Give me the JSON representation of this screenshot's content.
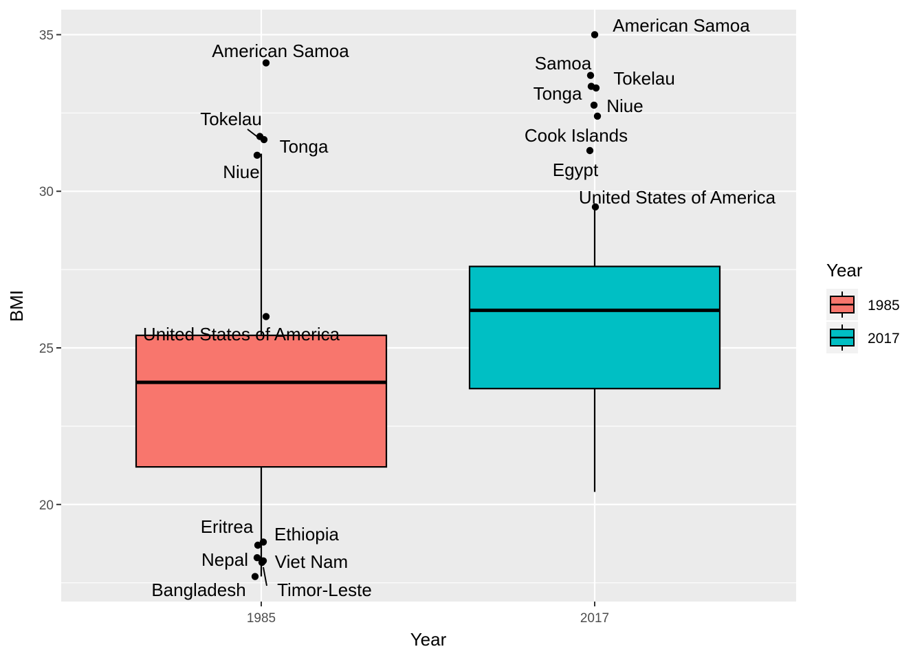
{
  "chart_data": {
    "type": "box",
    "title": "",
    "xlabel": "Year",
    "ylabel": "BMI",
    "categories": [
      "1985",
      "2017"
    ],
    "ylim": [
      16.9,
      35.8
    ],
    "y_ticks": [
      20,
      25,
      30,
      35
    ],
    "grid": true,
    "legend": {
      "title": "Year",
      "position": "right",
      "entries": [
        {
          "label": "1985",
          "color": "#F8766D"
        },
        {
          "label": "2017",
          "color": "#00BFC4"
        }
      ]
    },
    "boxes": [
      {
        "category": "1985",
        "lower_whisker": 17.7,
        "q1": 21.2,
        "median": 23.9,
        "q3": 25.4,
        "upper_whisker": 31.2,
        "fill": "#F8766D"
      },
      {
        "category": "2017",
        "lower_whisker": 20.4,
        "q1": 23.7,
        "median": 26.2,
        "q3": 27.6,
        "upper_whisker": 29.5,
        "fill": "#00BFC4"
      }
    ],
    "points": [
      {
        "category": "1985",
        "label": "American Samoa",
        "y": 34.1
      },
      {
        "category": "1985",
        "label": "Tokelau",
        "y": 31.75
      },
      {
        "category": "1985",
        "label": "Tonga",
        "y": 31.65
      },
      {
        "category": "1985",
        "label": "Niue",
        "y": 31.15
      },
      {
        "category": "1985",
        "label": "United States of America",
        "y": 26.0
      },
      {
        "category": "1985",
        "label": "Eritrea",
        "y": 18.7
      },
      {
        "category": "1985",
        "label": "Ethiopia",
        "y": 18.8
      },
      {
        "category": "1985",
        "label": "Nepal",
        "y": 18.3
      },
      {
        "category": "1985",
        "label": "Viet Nam",
        "y": 18.2
      },
      {
        "category": "1985",
        "label": "Bangladesh",
        "y": 17.7
      },
      {
        "category": "1985",
        "label": "Timor-Leste",
        "y": 18.15
      },
      {
        "category": "2017",
        "label": "American Samoa",
        "y": 35.0
      },
      {
        "category": "2017",
        "label": "Samoa",
        "y": 33.7
      },
      {
        "category": "2017",
        "label": "Tokelau",
        "y": 33.3
      },
      {
        "category": "2017",
        "label": "Tonga",
        "y": 33.35
      },
      {
        "category": "2017",
        "label": "Niue",
        "y": 32.75
      },
      {
        "category": "2017",
        "label": "Cook Islands",
        "y": 32.4
      },
      {
        "category": "2017",
        "label": "Egypt",
        "y": 31.3
      },
      {
        "category": "2017",
        "label": "United States of America",
        "y": 29.5
      }
    ]
  }
}
